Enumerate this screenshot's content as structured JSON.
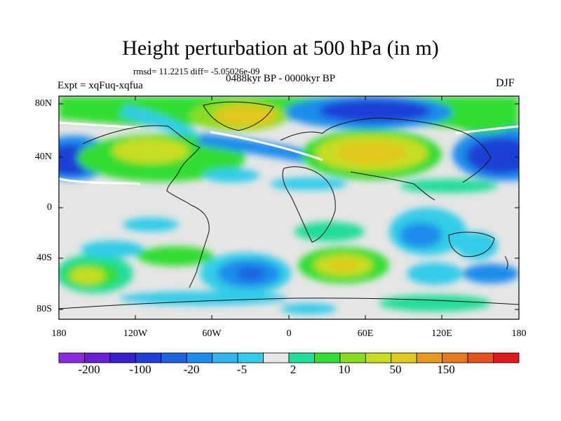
{
  "title": "Height perturbation at 500 hPa (in m)",
  "stats": "rmsd= 11.2215 diff= -5.05026e-09",
  "period": "0488kyr BP - 0000kyr BP",
  "experiment": "Expt = xqFuq-xqfua",
  "season": "DJF",
  "map": {
    "lat_labels": [
      "80N",
      "40N",
      "0",
      "40S",
      "80S"
    ],
    "lon_labels": [
      "180",
      "120W",
      "60W",
      "0",
      "60E",
      "120E",
      "180"
    ]
  },
  "colorbar": {
    "labels": [
      "-200",
      "-100",
      "-20",
      "-5",
      "2",
      "10",
      "50",
      "150"
    ],
    "colors": [
      "#8a2be2",
      "#6a1fd6",
      "#3a1fcf",
      "#1f3fd6",
      "#1f63e0",
      "#1e8cec",
      "#2fb4f0",
      "#33cce8",
      "#e6e6e6",
      "#22dd99",
      "#33dd33",
      "#88dd22",
      "#c8dd22",
      "#e0c81e",
      "#e89a1e",
      "#e6781e",
      "#e6521e",
      "#e01a1a"
    ]
  }
}
